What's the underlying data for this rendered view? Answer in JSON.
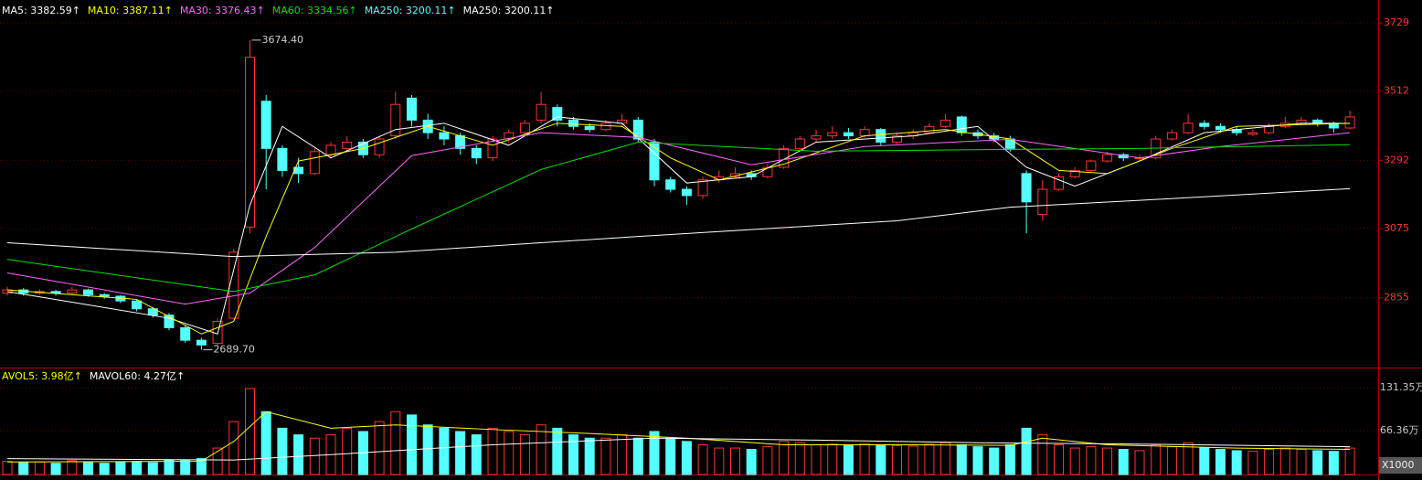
{
  "chart_data": {
    "type": "candlestick",
    "legend": [
      {
        "label": "MA5: 3382.59↑",
        "color": "#ffffff"
      },
      {
        "label": "MA10: 3387.11↑",
        "color": "#ffff00"
      },
      {
        "label": "MA30: 3376.43↑",
        "color": "#ff66ff"
      },
      {
        "label": "MA60: 3334.56↑",
        "color": "#00e000"
      },
      {
        "label": "MA250: 3200.11↑",
        "color": "#54ffff"
      },
      {
        "label": "MA250: 3200.11↑",
        "color": "#ffffff"
      }
    ],
    "ylim": [
      2639,
      3802
    ],
    "yticks": [
      2855,
      3075,
      3292,
      3512,
      3729
    ],
    "up_color": "#ff3232",
    "down_color": "#54ffff",
    "open": [
      2870,
      2880,
      2870,
      2875,
      2870,
      2880,
      2865,
      2860,
      2845,
      2820,
      2800,
      2760,
      2720,
      2710,
      2790,
      3080,
      3480,
      3330,
      3270,
      3250,
      3310,
      3330,
      3350,
      3310,
      3370,
      3490,
      3420,
      3380,
      3370,
      3330,
      3300,
      3360,
      3380,
      3420,
      3460,
      3420,
      3400,
      3390,
      3410,
      3420,
      3350,
      3230,
      3200,
      3180,
      3230,
      3240,
      3250,
      3240,
      3270,
      3330,
      3360,
      3370,
      3380,
      3370,
      3390,
      3350,
      3370,
      3380,
      3400,
      3430,
      3380,
      3370,
      3360,
      3250,
      3120,
      3200,
      3240,
      3260,
      3290,
      3310,
      3300,
      3300,
      3360,
      3380,
      3410,
      3400,
      3390,
      3375,
      3380,
      3400,
      3410,
      3420,
      3410,
      3395
    ],
    "high": [
      2890,
      2886,
      2882,
      2880,
      2890,
      2884,
      2870,
      2864,
      2850,
      2826,
      2806,
      2766,
      2728,
      2790,
      3010,
      3674.4,
      3500,
      3340,
      3300,
      3330,
      3350,
      3370,
      3360,
      3370,
      3510,
      3500,
      3440,
      3400,
      3380,
      3340,
      3370,
      3390,
      3420,
      3510,
      3470,
      3430,
      3410,
      3420,
      3440,
      3430,
      3360,
      3240,
      3210,
      3240,
      3260,
      3270,
      3260,
      3280,
      3340,
      3370,
      3390,
      3400,
      3395,
      3400,
      3395,
      3380,
      3390,
      3410,
      3440,
      3435,
      3390,
      3380,
      3370,
      3260,
      3230,
      3250,
      3270,
      3295,
      3320,
      3315,
      3310,
      3370,
      3390,
      3440,
      3420,
      3410,
      3400,
      3390,
      3410,
      3430,
      3430,
      3425,
      3415,
      3450
    ],
    "low": [
      2862,
      2862,
      2864,
      2862,
      2866,
      2858,
      2852,
      2838,
      2812,
      2792,
      2752,
      2712,
      2689.7,
      2704,
      2786,
      3060,
      3200,
      3240,
      3220,
      3246,
      3300,
      3320,
      3300,
      3300,
      3360,
      3400,
      3360,
      3340,
      3310,
      3280,
      3290,
      3350,
      3370,
      3410,
      3400,
      3390,
      3380,
      3385,
      3400,
      3350,
      3210,
      3190,
      3150,
      3170,
      3220,
      3235,
      3230,
      3235,
      3265,
      3325,
      3350,
      3360,
      3360,
      3365,
      3340,
      3345,
      3360,
      3375,
      3395,
      3370,
      3360,
      3350,
      3320,
      3060,
      3100,
      3195,
      3235,
      3255,
      3285,
      3290,
      3290,
      3295,
      3355,
      3375,
      3390,
      3380,
      3370,
      3370,
      3375,
      3395,
      3405,
      3400,
      3380,
      3390
    ],
    "close": [
      2880,
      2870,
      2875,
      2870,
      2880,
      2865,
      2860,
      2845,
      2820,
      2800,
      2760,
      2720,
      2705,
      2780,
      3000,
      3620,
      3330,
      3260,
      3250,
      3320,
      3340,
      3350,
      3310,
      3360,
      3470,
      3420,
      3380,
      3360,
      3330,
      3300,
      3360,
      3380,
      3410,
      3470,
      3420,
      3400,
      3390,
      3410,
      3420,
      3360,
      3230,
      3200,
      3180,
      3230,
      3240,
      3250,
      3240,
      3270,
      3330,
      3360,
      3370,
      3380,
      3370,
      3390,
      3350,
      3370,
      3380,
      3400,
      3420,
      3380,
      3370,
      3360,
      3330,
      3160,
      3200,
      3240,
      3260,
      3290,
      3310,
      3300,
      3300,
      3360,
      3380,
      3410,
      3400,
      3390,
      3380,
      3380,
      3400,
      3410,
      3420,
      3410,
      3395,
      3430
    ],
    "moving_averages": [
      {
        "color": "#ffffff",
        "x": [
          0,
          10,
          13,
          15,
          17,
          20,
          24,
          27,
          31,
          34,
          38,
          42,
          46,
          50,
          56,
          60,
          63,
          66,
          70,
          74,
          80,
          83
        ],
        "values": [
          2875,
          2790,
          2740,
          3150,
          3400,
          3300,
          3390,
          3410,
          3340,
          3430,
          3410,
          3220,
          3240,
          3350,
          3370,
          3400,
          3270,
          3210,
          3290,
          3380,
          3410,
          3410
        ]
      },
      {
        "color": "#ffff00",
        "x": [
          0,
          8,
          12,
          14,
          16,
          18,
          22,
          26,
          30,
          34,
          38,
          41,
          44,
          48,
          53,
          58,
          62,
          65,
          68,
          72,
          76,
          83
        ],
        "values": [
          2880,
          2850,
          2740,
          2780,
          3050,
          3290,
          3330,
          3400,
          3340,
          3410,
          3400,
          3300,
          3230,
          3280,
          3370,
          3390,
          3360,
          3260,
          3250,
          3330,
          3400,
          3410
        ]
      },
      {
        "color": "#ff66ff",
        "x": [
          0,
          11,
          15,
          19,
          25,
          33,
          39,
          46,
          53,
          62,
          70,
          75,
          83
        ],
        "values": [
          2934,
          2835,
          2870,
          3015,
          3307,
          3380,
          3365,
          3278,
          3336,
          3359,
          3300,
          3336,
          3380
        ]
      },
      {
        "color": "#00e000",
        "x": [
          0,
          14,
          19,
          25,
          33,
          39,
          50,
          62,
          70,
          83
        ],
        "values": [
          2977,
          2875,
          2928,
          3074,
          3263,
          3350,
          3321,
          3327,
          3330,
          3342
        ]
      },
      {
        "color": "#ffffff",
        "x": [
          0,
          14,
          24,
          39,
          55,
          62,
          70,
          83
        ],
        "values": [
          3030,
          2986,
          3000,
          3050,
          3100,
          3143,
          3165,
          3202
        ]
      }
    ],
    "annotations": [
      {
        "label": "3674.40",
        "value": 3674.4
      },
      {
        "label": "2689.70",
        "value": 2689.7
      }
    ],
    "volume": {
      "legend": [
        {
          "label": "AVOL5: 3.98亿↑",
          "color": "#ffff00"
        },
        {
          "label": "MAVOL60: 4.27亿↑",
          "color": "#ffffff"
        }
      ],
      "ylim": [
        0,
        157.6
      ],
      "yticks": [
        {
          "value": 66.36,
          "label": "66.36万"
        },
        {
          "value": 131.35,
          "label": "131.35万"
        }
      ],
      "unit_label": "X1000",
      "values": [
        20,
        18,
        19,
        17,
        21,
        18,
        17,
        19,
        20,
        18,
        22,
        21,
        24,
        40,
        80,
        130,
        95,
        70,
        60,
        55,
        60,
        70,
        65,
        80,
        95,
        90,
        75,
        70,
        65,
        60,
        70,
        65,
        60,
        75,
        70,
        60,
        55,
        55,
        60,
        55,
        65,
        55,
        50,
        45,
        40,
        40,
        38,
        42,
        50,
        48,
        45,
        46,
        44,
        47,
        45,
        44,
        43,
        46,
        48,
        45,
        42,
        40,
        45,
        70,
        60,
        45,
        40,
        42,
        40,
        38,
        36,
        45,
        42,
        48,
        40,
        38,
        36,
        35,
        38,
        40,
        38,
        36,
        35,
        40
      ],
      "averages": [
        {
          "color": "#ffff00",
          "x": [
            0,
            12,
            14,
            16,
            20,
            24,
            30,
            36,
            42,
            48,
            56,
            62,
            64,
            68,
            76,
            83
          ],
          "values": [
            19,
            20,
            50,
            95,
            70,
            75,
            68,
            62,
            55,
            45,
            45,
            44,
            55,
            45,
            40,
            38
          ]
        },
        {
          "color": "#ffffff",
          "x": [
            0,
            14,
            20,
            30,
            40,
            50,
            60,
            70,
            83
          ],
          "values": [
            24,
            22,
            30,
            45,
            55,
            52,
            48,
            46,
            42
          ]
        }
      ]
    }
  }
}
